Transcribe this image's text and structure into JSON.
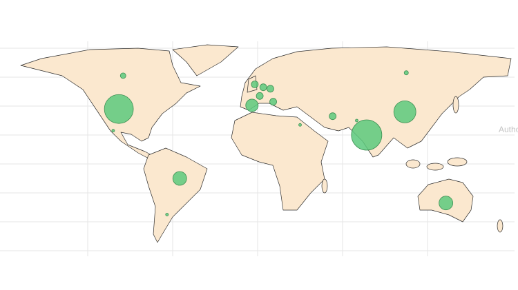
{
  "chart_data": {
    "type": "bubble-map",
    "annotation": "Autho",
    "marker_color": "#5cc97c",
    "markers": [
      {
        "lon": -98,
        "lat": 38,
        "value": 440
      },
      {
        "lon": -95,
        "lat": 61,
        "value": 16
      },
      {
        "lon": -102,
        "lat": 23,
        "value": 4
      },
      {
        "lon": -55,
        "lat": -10,
        "value": 100
      },
      {
        "lon": -64,
        "lat": -35,
        "value": 4
      },
      {
        "lon": -2,
        "lat": 55,
        "value": 25
      },
      {
        "lon": 4,
        "lat": 53,
        "value": 25
      },
      {
        "lon": 9,
        "lat": 52,
        "value": 25
      },
      {
        "lon": 1.5,
        "lat": 47,
        "value": 25
      },
      {
        "lon": -4,
        "lat": 40.5,
        "value": 81
      },
      {
        "lon": 11,
        "lat": 43,
        "value": 25
      },
      {
        "lon": 30,
        "lat": 27,
        "value": 4
      },
      {
        "lon": 53,
        "lat": 33,
        "value": 25
      },
      {
        "lon": 105,
        "lat": 63,
        "value": 9
      },
      {
        "lon": 104,
        "lat": 36,
        "value": 256
      },
      {
        "lon": 77,
        "lat": 20,
        "value": 484
      },
      {
        "lon": 70,
        "lat": 30,
        "value": 4
      },
      {
        "lon": 133,
        "lat": -27,
        "value": 100
      }
    ]
  }
}
